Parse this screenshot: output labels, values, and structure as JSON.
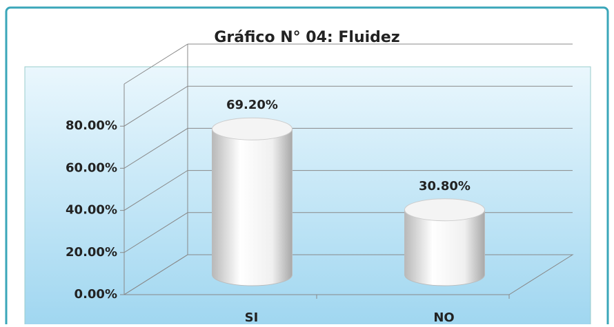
{
  "chart_data": {
    "type": "bar3d",
    "title": "Gráfico N° 04: Fluidez",
    "categories": [
      "SI",
      "NO"
    ],
    "values": [
      69.2,
      30.8
    ],
    "value_labels": [
      "69.20%",
      "30.80%"
    ],
    "ylim": [
      0,
      100
    ],
    "yticks": [
      {
        "value": 0,
        "label": "0.00%"
      },
      {
        "value": 20,
        "label": "20.00%"
      },
      {
        "value": 40,
        "label": "40.00%"
      },
      {
        "value": 60,
        "label": "60.00%"
      },
      {
        "value": 80,
        "label": "80.00%"
      }
    ],
    "grid": true
  }
}
